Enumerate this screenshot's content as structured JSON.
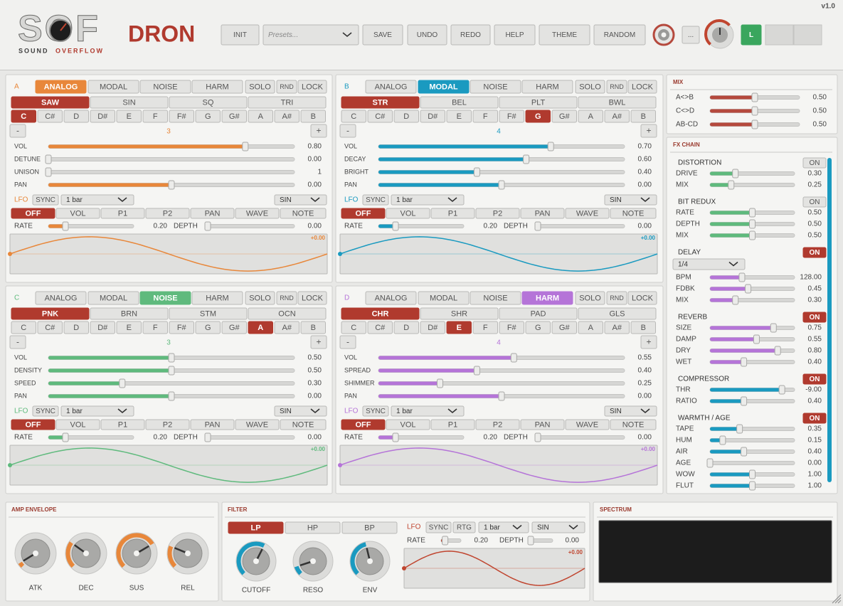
{
  "header": {
    "logo": "SOF",
    "logo_sub": [
      "SOUND",
      "OVERFLOW"
    ],
    "title": "DRON",
    "version": "v1.0",
    "init": "INIT",
    "presets": "Presets...",
    "actions": [
      "SAVE",
      "UNDO",
      "REDO",
      "HELP",
      "THEME",
      "RANDOM"
    ],
    "more": "...",
    "channel": "L"
  },
  "oscillators": [
    {
      "letter": "A",
      "color": "#e8873a",
      "engines": [
        "ANALOG",
        "MODAL",
        "NOISE",
        "HARM"
      ],
      "active_engine": 0,
      "buttons": [
        "SOLO",
        "RND",
        "LOCK"
      ],
      "waves": [
        "SAW",
        "SIN",
        "SQ",
        "TRI"
      ],
      "active_wave": 0,
      "notes": [
        "C",
        "C#",
        "D",
        "D#",
        "E",
        "F",
        "F#",
        "G",
        "G#",
        "A",
        "A#",
        "B"
      ],
      "active_note": 0,
      "minus": "-",
      "plus": "+",
      "octave": "3",
      "sliders": [
        {
          "label": "VOL",
          "value": "0.80"
        },
        {
          "label": "DETUNE",
          "value": "0.00"
        },
        {
          "label": "UNISON",
          "value": "1",
          "range": [
            1,
            8
          ]
        },
        {
          "label": "PAN",
          "value": "0.00",
          "range": [
            -1,
            1
          ]
        }
      ],
      "lfo": {
        "label": "LFO",
        "sync": "SYNC",
        "division": "1 bar",
        "shape": "SIN",
        "targets": [
          "OFF",
          "VOL",
          "P1",
          "P2",
          "PAN",
          "WAVE",
          "NOTE"
        ],
        "active_target": 0,
        "rate": {
          "label": "RATE",
          "value": "0.20"
        },
        "depth": {
          "label": "DEPTH",
          "value": "0.00"
        },
        "readout": "+0.00"
      }
    },
    {
      "letter": "B",
      "color": "#1a9ac0",
      "engines": [
        "ANALOG",
        "MODAL",
        "NOISE",
        "HARM"
      ],
      "active_engine": 1,
      "buttons": [
        "SOLO",
        "RND",
        "LOCK"
      ],
      "waves": [
        "STR",
        "BEL",
        "PLT",
        "BWL"
      ],
      "active_wave": 0,
      "notes": [
        "C",
        "C#",
        "D",
        "D#",
        "E",
        "F",
        "F#",
        "G",
        "G#",
        "A",
        "A#",
        "B"
      ],
      "active_note": 7,
      "minus": "-",
      "plus": "+",
      "octave": "4",
      "sliders": [
        {
          "label": "VOL",
          "value": "0.70"
        },
        {
          "label": "DECAY",
          "value": "0.60"
        },
        {
          "label": "BRIGHT",
          "value": "0.40"
        },
        {
          "label": "PAN",
          "value": "0.00",
          "range": [
            -1,
            1
          ]
        }
      ],
      "lfo": {
        "label": "LFO",
        "sync": "SYNC",
        "division": "1 bar",
        "shape": "SIN",
        "targets": [
          "OFF",
          "VOL",
          "P1",
          "P2",
          "PAN",
          "WAVE",
          "NOTE"
        ],
        "active_target": 0,
        "rate": {
          "label": "RATE",
          "value": "0.20"
        },
        "depth": {
          "label": "DEPTH",
          "value": "0.00"
        },
        "readout": "+0.00"
      }
    },
    {
      "letter": "C",
      "color": "#5fba7d",
      "engines": [
        "ANALOG",
        "MODAL",
        "NOISE",
        "HARM"
      ],
      "active_engine": 2,
      "buttons": [
        "SOLO",
        "RND",
        "LOCK"
      ],
      "waves": [
        "PNK",
        "BRN",
        "STM",
        "OCN"
      ],
      "active_wave": 0,
      "notes": [
        "C",
        "C#",
        "D",
        "D#",
        "E",
        "F",
        "F#",
        "G",
        "G#",
        "A",
        "A#",
        "B"
      ],
      "active_note": 9,
      "minus": "-",
      "plus": "+",
      "octave": "3",
      "sliders": [
        {
          "label": "VOL",
          "value": "0.50"
        },
        {
          "label": "DENSITY",
          "value": "0.50"
        },
        {
          "label": "SPEED",
          "value": "0.30"
        },
        {
          "label": "PAN",
          "value": "0.00",
          "range": [
            -1,
            1
          ]
        }
      ],
      "lfo": {
        "label": "LFO",
        "sync": "SYNC",
        "division": "1 bar",
        "shape": "SIN",
        "targets": [
          "OFF",
          "VOL",
          "P1",
          "P2",
          "PAN",
          "WAVE",
          "NOTE"
        ],
        "active_target": 0,
        "rate": {
          "label": "RATE",
          "value": "0.20"
        },
        "depth": {
          "label": "DEPTH",
          "value": "0.00"
        },
        "readout": "+0.00"
      }
    },
    {
      "letter": "D",
      "color": "#b574d8",
      "engines": [
        "ANALOG",
        "MODAL",
        "NOISE",
        "HARM"
      ],
      "active_engine": 3,
      "buttons": [
        "SOLO",
        "RND",
        "LOCK"
      ],
      "waves": [
        "CHR",
        "SHR",
        "PAD",
        "GLS"
      ],
      "active_wave": 0,
      "notes": [
        "C",
        "C#",
        "D",
        "D#",
        "E",
        "F",
        "F#",
        "G",
        "G#",
        "A",
        "A#",
        "B"
      ],
      "active_note": 4,
      "minus": "-",
      "plus": "+",
      "octave": "4",
      "sliders": [
        {
          "label": "VOL",
          "value": "0.55"
        },
        {
          "label": "SPREAD",
          "value": "0.40"
        },
        {
          "label": "SHIMMER",
          "value": "0.25"
        },
        {
          "label": "PAN",
          "value": "0.00",
          "range": [
            -1,
            1
          ]
        }
      ],
      "lfo": {
        "label": "LFO",
        "sync": "SYNC",
        "division": "1 bar",
        "shape": "SIN",
        "targets": [
          "OFF",
          "VOL",
          "P1",
          "P2",
          "PAN",
          "WAVE",
          "NOTE"
        ],
        "active_target": 0,
        "rate": {
          "label": "RATE",
          "value": "0.20"
        },
        "depth": {
          "label": "DEPTH",
          "value": "0.00"
        },
        "readout": "+0.00"
      }
    }
  ],
  "mix": {
    "title": "MIX",
    "color": "#b5493d",
    "rows": [
      {
        "label": "A<>B",
        "value": "0.50"
      },
      {
        "label": "C<>D",
        "value": "0.50"
      },
      {
        "label": "AB-CD",
        "value": "0.50"
      }
    ]
  },
  "fx_chain": {
    "title": "FX CHAIN",
    "sections": [
      {
        "name": "DISTORTION",
        "toggle": "ON",
        "enabled": false,
        "color": "#5fba7d",
        "params": [
          {
            "label": "DRIVE",
            "value": "0.30"
          },
          {
            "label": "MIX",
            "value": "0.25"
          }
        ]
      },
      {
        "name": "BIT REDUX",
        "toggle": "ON",
        "enabled": false,
        "color": "#5fba7d",
        "params": [
          {
            "label": "RATE",
            "value": "0.50"
          },
          {
            "label": "DEPTH",
            "value": "0.50"
          },
          {
            "label": "MIX",
            "value": "0.50"
          }
        ]
      },
      {
        "name": "DELAY",
        "toggle": "ON",
        "enabled": true,
        "color": "#b574d8",
        "dropdown": "1/4",
        "params": [
          {
            "label": "BPM",
            "value": "128.00",
            "range": [
              60,
              240
            ]
          },
          {
            "label": "FDBK",
            "value": "0.45"
          },
          {
            "label": "MIX",
            "value": "0.30"
          }
        ]
      },
      {
        "name": "REVERB",
        "toggle": "ON",
        "enabled": true,
        "color": "#b574d8",
        "params": [
          {
            "label": "SIZE",
            "value": "0.75"
          },
          {
            "label": "DAMP",
            "value": "0.55"
          },
          {
            "label": "DRY",
            "value": "0.80"
          },
          {
            "label": "WET",
            "value": "0.40"
          }
        ]
      },
      {
        "name": "COMPRESSOR",
        "toggle": "ON",
        "enabled": true,
        "color": "#1a9ac0",
        "params": [
          {
            "label": "THR",
            "value": "-9.00",
            "range": [
              -60,
              0
            ]
          },
          {
            "label": "RATIO",
            "value": "0.40"
          }
        ]
      },
      {
        "name": "WARMTH / AGE",
        "toggle": "ON",
        "enabled": true,
        "color": "#1a9ac0",
        "params": [
          {
            "label": "TAPE",
            "value": "0.35"
          },
          {
            "label": "HUM",
            "value": "0.15"
          },
          {
            "label": "AIR",
            "value": "0.40"
          },
          {
            "label": "AGE",
            "value": "0.00"
          },
          {
            "label": "WOW",
            "value": "1.00",
            "range": [
              0,
              2
            ]
          },
          {
            "label": "FLUT",
            "value": "1.00",
            "range": [
              0,
              2
            ]
          }
        ]
      }
    ]
  },
  "amp_envelope": {
    "title": "AMP ENVELOPE",
    "color": "#e8873a",
    "knobs": [
      {
        "label": "ATK",
        "value": 0.05
      },
      {
        "label": "DEC",
        "value": 0.3
      },
      {
        "label": "SUS",
        "value": 0.72
      },
      {
        "label": "REL",
        "value": 0.25
      }
    ]
  },
  "filter": {
    "title": "FILTER",
    "color": "#c0452f",
    "knob_color": "#1a9ac0",
    "modes": [
      "LP",
      "HP",
      "BP"
    ],
    "active_mode": 0,
    "lfo": {
      "label": "LFO",
      "sync": "SYNC",
      "retrig": "RTG",
      "division": "1 bar",
      "shape": "SIN",
      "rate": {
        "label": "RATE",
        "value": "0.20"
      },
      "depth": {
        "label": "DEPTH",
        "value": "0.00"
      },
      "readout": "+0.00"
    },
    "knobs": [
      {
        "label": "CUTOFF",
        "value": 0.6
      },
      {
        "label": "RESO",
        "value": 0.1
      },
      {
        "label": "ENV",
        "value": 0.45
      }
    ]
  },
  "spectrum": {
    "title": "SPECTRUM"
  }
}
